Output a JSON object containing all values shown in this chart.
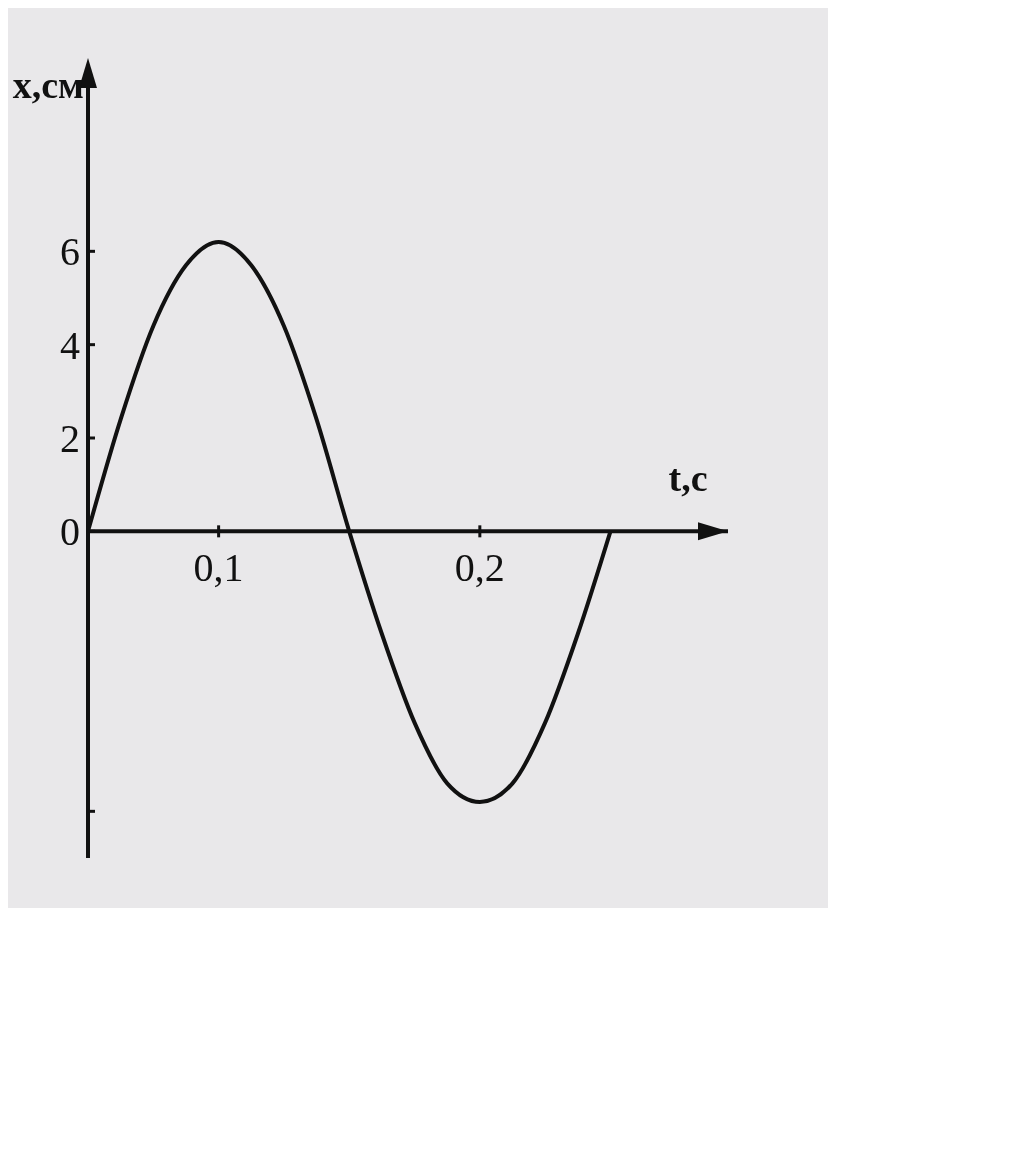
{
  "chart_data": {
    "type": "line",
    "xlabel": "t,с",
    "ylabel": "x,см",
    "x": [
      0.05,
      0.0625,
      0.075,
      0.0875,
      0.1,
      0.1125,
      0.125,
      0.1375,
      0.15,
      0.1625,
      0.175,
      0.1875,
      0.2,
      0.2125,
      0.225,
      0.2375,
      0.25
    ],
    "series": [
      {
        "color": "#111111",
        "values": [
          0,
          2.4,
          4.4,
          5.7,
          6.2,
          5.7,
          4.4,
          2.4,
          0,
          -2.2,
          -4.1,
          -5.4,
          -5.8,
          -5.4,
          -4.1,
          -2.2,
          0
        ]
      }
    ],
    "xlim": [
      0.05,
      0.295
    ],
    "xticks": [
      {
        "value": 0.1,
        "label": "0,1"
      },
      {
        "value": 0.2,
        "label": "0,2"
      }
    ],
    "ylim": [
      -7,
      9.5
    ],
    "yticks": [
      {
        "value": -6,
        "label": null
      },
      0,
      2,
      4,
      6
    ],
    "grid": false,
    "marker": "none",
    "line_style": "solid"
  }
}
